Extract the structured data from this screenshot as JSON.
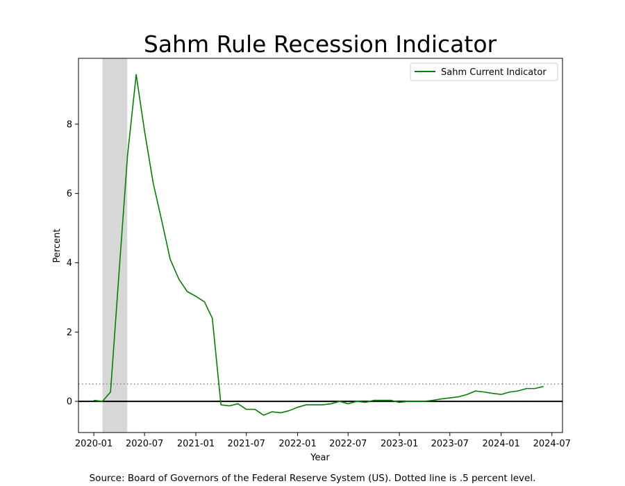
{
  "chart_data": {
    "type": "line",
    "title": "Sahm Rule Recession Indicator",
    "xlabel": "Year",
    "ylabel": "Percent",
    "source_note": "Source: Board of Governors of the Federal Reserve System (US). Dotted line is .5 percent level.",
    "xlim": [
      "2019-11-07",
      "2024-08-08"
    ],
    "ylim": [
      -0.9,
      9.9
    ],
    "x_ticks": [
      "2020-01-01",
      "2020-07-01",
      "2021-01-01",
      "2021-07-01",
      "2022-01-01",
      "2022-07-01",
      "2023-01-01",
      "2023-07-01",
      "2024-01-01",
      "2024-07-01"
    ],
    "x_tick_labels": [
      "2020-01",
      "2020-07",
      "2021-01",
      "2021-07",
      "2022-01",
      "2022-07",
      "2023-01",
      "2023-07",
      "2024-01",
      "2024-07"
    ],
    "y_ticks": [
      0,
      2,
      4,
      6,
      8
    ],
    "y_tick_labels": [
      "0",
      "2",
      "4",
      "6",
      "8"
    ],
    "grid": false,
    "legend_position": "upper right",
    "recession_shading": {
      "start": "2020-02-01",
      "end": "2020-04-30",
      "color": "#d3d3d3"
    },
    "reference_lines": [
      {
        "y": 0,
        "style": "solid",
        "color": "#000000"
      },
      {
        "y": 0.5,
        "style": "dotted",
        "color": "#808080"
      }
    ],
    "series": [
      {
        "name": "Sahm Current Indicator",
        "color": "#008000",
        "x": [
          "2020-01-01",
          "2020-02-01",
          "2020-03-01",
          "2020-04-01",
          "2020-05-01",
          "2020-06-01",
          "2020-07-01",
          "2020-08-01",
          "2020-09-01",
          "2020-10-01",
          "2020-11-01",
          "2020-12-01",
          "2021-01-01",
          "2021-02-01",
          "2021-03-01",
          "2021-04-01",
          "2021-05-01",
          "2021-06-01",
          "2021-07-01",
          "2021-08-01",
          "2021-09-01",
          "2021-10-01",
          "2021-11-01",
          "2021-12-01",
          "2022-01-01",
          "2022-02-01",
          "2022-03-01",
          "2022-04-01",
          "2022-05-01",
          "2022-06-01",
          "2022-07-01",
          "2022-08-01",
          "2022-09-01",
          "2022-10-01",
          "2022-11-01",
          "2022-12-01",
          "2023-01-01",
          "2023-02-01",
          "2023-03-01",
          "2023-04-01",
          "2023-05-01",
          "2023-06-01",
          "2023-07-01",
          "2023-08-01",
          "2023-09-01",
          "2023-10-01",
          "2023-11-01",
          "2023-12-01",
          "2024-01-01",
          "2024-02-01",
          "2024-03-01",
          "2024-04-01",
          "2024-05-01",
          "2024-06-01"
        ],
        "y": [
          0.03,
          0.0,
          0.27,
          3.77,
          7.1,
          9.43,
          7.8,
          6.3,
          5.2,
          4.1,
          3.53,
          3.17,
          3.03,
          2.87,
          2.4,
          -0.1,
          -0.13,
          -0.07,
          -0.23,
          -0.23,
          -0.4,
          -0.3,
          -0.33,
          -0.27,
          -0.17,
          -0.1,
          -0.1,
          -0.1,
          -0.07,
          0.0,
          -0.07,
          0.0,
          -0.03,
          0.03,
          0.03,
          0.03,
          -0.03,
          0.0,
          0.0,
          0.0,
          0.03,
          0.07,
          0.1,
          0.13,
          0.2,
          0.3,
          0.27,
          0.23,
          0.2,
          0.27,
          0.3,
          0.37,
          0.37,
          0.43
        ]
      }
    ]
  }
}
